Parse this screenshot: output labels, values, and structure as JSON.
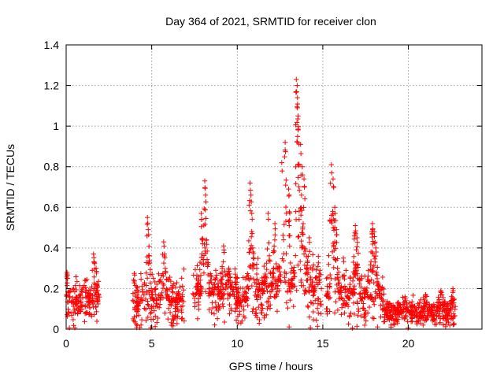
{
  "chart_data": {
    "type": "scatter",
    "title": "Day 364 of 2021, SRMTID for receiver clon",
    "xlabel": "GPS time / hours",
    "ylabel": "SRMTID / TECUs",
    "xlim": [
      0,
      24.3
    ],
    "ylim": [
      0,
      1.4
    ],
    "xticks": [
      0,
      5,
      10,
      15,
      20
    ],
    "xtick_labels": [
      "0",
      "5",
      "10",
      "15",
      "20"
    ],
    "yticks": [
      0,
      0.2,
      0.4,
      0.6,
      0.8,
      1.0,
      1.2,
      1.4
    ],
    "ytick_labels": [
      "0",
      "0.2",
      "0.4",
      "0.6",
      "0.8",
      "1",
      "1.2",
      "1.4"
    ],
    "grid": true,
    "marker": "+",
    "color": "#ff0000",
    "series": [
      {
        "name": "SRMTID",
        "segments": [
          {
            "start": 0.0,
            "end": 1.95,
            "base": 0.13,
            "spread": 0.1,
            "peaks": [
              [
                0.05,
                0.28
              ],
              [
                1.6,
                0.37
              ],
              [
                1.75,
                0.3
              ]
            ]
          },
          {
            "start": 3.9,
            "end": 6.9,
            "base": 0.14,
            "spread": 0.12,
            "peaks": [
              [
                4.75,
                0.55
              ],
              [
                4.8,
                0.49
              ],
              [
                5.7,
                0.43
              ],
              [
                5.75,
                0.37
              ]
            ]
          },
          {
            "start": 7.4,
            "end": 10.0,
            "base": 0.17,
            "spread": 0.12,
            "peaks": [
              [
                7.9,
                0.57
              ],
              [
                8.1,
                0.73
              ],
              [
                8.15,
                0.66
              ],
              [
                8.2,
                0.44
              ],
              [
                9.2,
                0.41
              ],
              [
                9.5,
                0.3
              ]
            ]
          },
          {
            "start": 10.0,
            "end": 11.0,
            "base": 0.14,
            "spread": 0.1,
            "peaks": [
              [
                10.75,
                0.72
              ],
              [
                10.8,
                0.66
              ],
              [
                10.85,
                0.57
              ],
              [
                10.9,
                0.4
              ]
            ]
          },
          {
            "start": 11.0,
            "end": 14.95,
            "base": 0.18,
            "spread": 0.14,
            "peaks": [
              [
                11.8,
                0.57
              ],
              [
                12.2,
                0.52
              ],
              [
                12.6,
                0.82
              ],
              [
                12.8,
                0.92
              ],
              [
                13.0,
                0.69
              ],
              [
                13.45,
                1.23
              ],
              [
                13.5,
                1.2
              ],
              [
                13.52,
                1.09
              ],
              [
                13.55,
                1.05
              ],
              [
                13.7,
                0.91
              ],
              [
                13.8,
                0.8
              ],
              [
                13.9,
                0.74
              ],
              [
                14.2,
                0.45
              ]
            ]
          },
          {
            "start": 15.2,
            "end": 18.6,
            "base": 0.15,
            "spread": 0.12,
            "peaks": [
              [
                15.5,
                0.81
              ],
              [
                15.6,
                0.74
              ],
              [
                15.7,
                0.6
              ],
              [
                15.8,
                0.49
              ],
              [
                16.2,
                0.35
              ],
              [
                16.9,
                0.51
              ],
              [
                17.0,
                0.45
              ],
              [
                17.9,
                0.52
              ],
              [
                18.0,
                0.48
              ],
              [
                18.1,
                0.4
              ]
            ]
          },
          {
            "start": 18.6,
            "end": 22.75,
            "base": 0.08,
            "spread": 0.06,
            "peaks": [
              [
                19.8,
                0.16
              ],
              [
                21.0,
                0.17
              ],
              [
                21.9,
                0.19
              ],
              [
                22.6,
                0.2
              ]
            ]
          }
        ]
      }
    ]
  }
}
